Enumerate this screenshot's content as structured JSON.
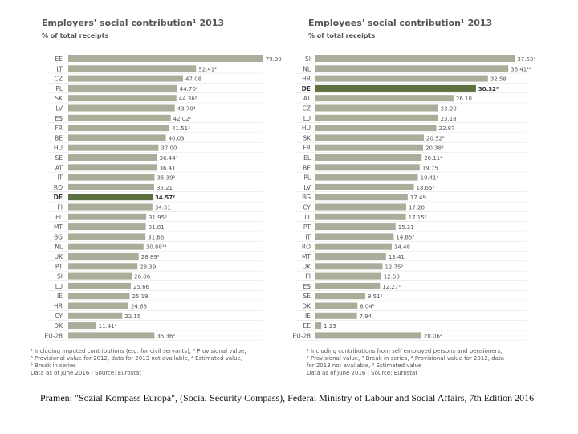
{
  "source_note": "Pramen: \"Sozial Kompass Europa\", (Social Security Compass), Federal Ministry of Labour and Social Affairs, 7th Edition 2016",
  "colors": {
    "bar": "#a9ae9a",
    "highlight": "#5d7040",
    "text": "#555555"
  },
  "chart_data": [
    {
      "type": "bar",
      "orientation": "horizontal",
      "title": "Employers' social contribution¹ 2013",
      "subtitle": "% of total receipts",
      "xlim": [
        0,
        80
      ],
      "highlight": "DE",
      "categories": [
        "EE",
        "LT",
        "CZ",
        "PL",
        "SK",
        "LV",
        "ES",
        "FR",
        "BE",
        "HU",
        "SE",
        "AT",
        "IT",
        "RO",
        "DE",
        "FI",
        "EL",
        "MT",
        "BG",
        "NL",
        "UK",
        "PT",
        "SI",
        "LU",
        "IE",
        "HR",
        "CY",
        "DK",
        "EU-28"
      ],
      "values": [
        79.9,
        52.41,
        47.08,
        44.7,
        44.36,
        43.7,
        42.02,
        41.51,
        40.03,
        37.0,
        36.44,
        36.41,
        35.39,
        35.21,
        34.57,
        34.51,
        31.95,
        31.81,
        31.66,
        30.88,
        28.89,
        28.39,
        26.06,
        25.66,
        25.19,
        24.68,
        22.15,
        11.41,
        35.36
      ],
      "labels": [
        "79.90",
        "52.41²",
        "47.08",
        "44.70²",
        "44.36²",
        "43.70⁴",
        "42.02²",
        "41.51²",
        "40.03",
        "37.00",
        "36.44³",
        "36.41",
        "35.39²",
        "35.21",
        "34.57²",
        "34.51",
        "31.95²",
        "31.81",
        "31.66",
        "30.88³⁴",
        "28.89²",
        "28.39",
        "26.06",
        "25.66",
        "25.19",
        "24.68",
        "22.15",
        "11.41²",
        "35.36²"
      ],
      "footnotes": [
        "¹ Including imputed contributions (e.g. for civil servants), ² Provisional value,",
        "³ Provisional value for 2012, data for 2013 not available, ⁴ Estimated value,",
        "⁵ Break in series",
        "Data as of June 2016 | Source: Eurostat"
      ]
    },
    {
      "type": "bar",
      "orientation": "horizontal",
      "title": "Employees' social contribution¹ 2013",
      "subtitle": "% of total receipts",
      "xlim": [
        0,
        40
      ],
      "highlight": "DE",
      "categories": [
        "SI",
        "NL",
        "HR",
        "DE",
        "AT",
        "CZ",
        "LU",
        "HU",
        "SK",
        "FR",
        "EL",
        "BE",
        "PL",
        "LV",
        "BG",
        "CY",
        "LT",
        "PT",
        "IT",
        "RO",
        "MT",
        "UK",
        "FI",
        "ES",
        "SE",
        "DK",
        "IE",
        "EE",
        "EU-28"
      ],
      "values": [
        37.63,
        36.41,
        32.58,
        30.32,
        26.1,
        23.2,
        23.18,
        22.87,
        20.52,
        20.38,
        20.11,
        19.75,
        19.41,
        18.65,
        17.49,
        17.2,
        17.15,
        15.21,
        14.85,
        14.48,
        13.41,
        12.75,
        12.5,
        12.27,
        9.51,
        8.04,
        7.94,
        1.23,
        20.06
      ],
      "labels": [
        "37.63²",
        "36.41²⁴",
        "32.58",
        "30.32²",
        "26.10",
        "23.20",
        "23.18",
        "22.87",
        "20.52²",
        "20.38²",
        "20.11⁴",
        "19.75",
        "19.41⁴",
        "18.65⁵",
        "17.49",
        "17.20",
        "17.15²",
        "15.21",
        "14.85²",
        "14.48",
        "13.41",
        "12.75²",
        "12.50",
        "12.27²",
        "9.51²",
        "8.04²",
        "7.94",
        "1.23",
        "20.06²"
      ],
      "footnotes": [
        "¹ Including contributions from self employed persons and pensioners,",
        "² Provisional value, ³ Break in series, ⁴ Provisional value for 2012, data",
        "for 2013 not available, ⁵ Estimated value",
        "Data as of June 2016 | Source: Eurostat"
      ]
    }
  ]
}
